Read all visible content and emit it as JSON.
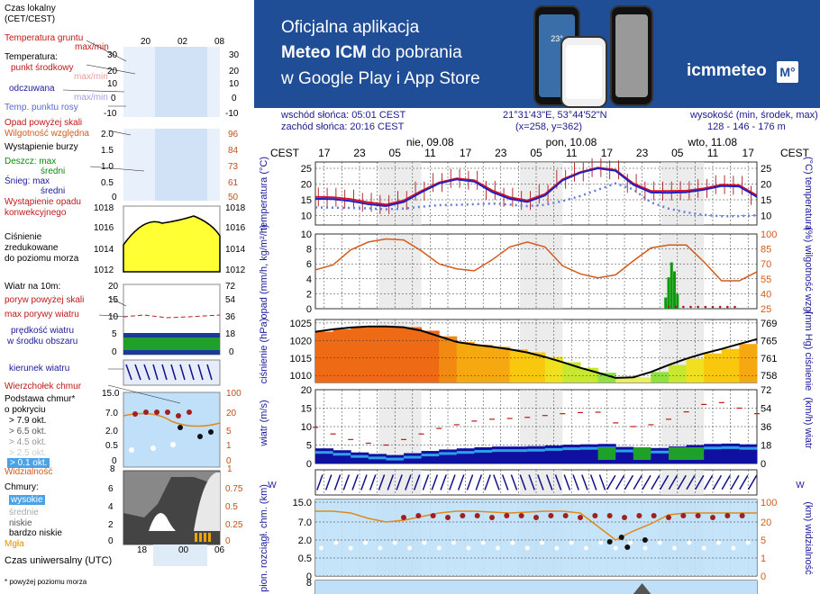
{
  "legend": {
    "time_title_1": "Czas lokalny",
    "time_title_2": "(CET/CEST)",
    "time_ticks_top": [
      "20",
      "02",
      "08"
    ],
    "soil_temp": "Temperatura gruntu",
    "soil_temp_sub": "max/min",
    "temperature": "Temperatura:",
    "mid_point": "punkt środkowy",
    "max_min_faint": "max/min",
    "feels_like": "odczuwana",
    "max_min_faint2": "max/min",
    "dew_point": "Temp. punktu rosy",
    "temp_ticks": [
      "30",
      "20",
      "10",
      "0",
      "-10"
    ],
    "rain_above": "Opad powyżej skali",
    "humidity": "Wilgotność względna",
    "storm": "Wystąpienie burzy",
    "rain_max": "Deszcz: max",
    "rain_mean": "średni",
    "snow_max": "Śnieg:  max",
    "snow_mean": "średni",
    "conv": "Wystąpienie opadu",
    "conv2": "konwekcyjnego",
    "precip_ticks_left": [
      "2.0",
      "1.5",
      "1.0",
      "0.5",
      "0"
    ],
    "precip_ticks_right": [
      "96",
      "84",
      "73",
      "61",
      "50"
    ],
    "pressure_ticks": [
      "1018",
      "1016",
      "1014",
      "1012"
    ],
    "pressure_1": "Ciśnienie",
    "pressure_2": "zredukowane",
    "pressure_3": "do poziomu morza",
    "wind_title": "Wiatr na 10m:",
    "gusts_above": "poryw powyżej skali",
    "gusts_max": "max porywy wiatru",
    "wind_speed": "prędkość wiatru",
    "wind_speed2": "w środku obszaru",
    "wind_ticks_left": [
      "20",
      "15",
      "10",
      "5",
      "0"
    ],
    "wind_ticks_right": [
      "72",
      "54",
      "36",
      "18",
      "0"
    ],
    "wind_dir": "kierunek wiatru",
    "cloud_top": "Wierzchołek chmur",
    "cloud_base": "Podstawa chmur*",
    "cloud_cover": "o pokryciu",
    "okt_79": "> 7.9 okt.",
    "okt_65": "> 6.5 okt.",
    "okt_45": "> 4.5 okt.",
    "okt_25": "> 2.5 okt.",
    "okt_01": "> 0.1 okt.",
    "cloud_ticks_left": [
      "15.0",
      "7.0",
      "2.0",
      "0.5",
      "0"
    ],
    "cloud_ticks_right": [
      "100",
      "20",
      "5",
      "1",
      "0"
    ],
    "visibility": "Widzialność",
    "vis_ticks": [
      "8",
      "1"
    ],
    "clouds": "Chmury:",
    "high": "wysokie",
    "medium": "średnie",
    "low": "niskie",
    "very_low": "bardzo niskie",
    "fog": "Mgła",
    "clouds_ticks_left": [
      "6",
      "4",
      "2",
      "0"
    ],
    "clouds_ticks_right": [
      "0.75",
      "0.5",
      "0.25",
      "0"
    ],
    "utc_ticks": [
      "18",
      "00",
      "06"
    ],
    "utc": "Czas uniwersalny (UTC)",
    "footnote": "* powyżej poziomu morza"
  },
  "banner": {
    "line1": "Oficjalna aplikacja",
    "line2_bold": "Meteo ICM",
    "line2_rest": " do pobrania",
    "line3": "w Google Play i App Store",
    "logo": "icmmeteo",
    "logo_badge": "M°",
    "phone_temp": "23°"
  },
  "info": {
    "sunrise": "wschód słońca: 05:01 CEST",
    "sunset": "zachód słońca: 20:16 CEST",
    "coords": "21°31'43\"E, 53°44'52\"N",
    "grid": "(x=258,  y=362)",
    "elev_title": "wysokość (min, środek, max)",
    "elev_values": "128 - 146 - 176 m"
  },
  "chart_data": {
    "type": "line",
    "tz_label": "CEST",
    "hours": [
      "17",
      "23",
      "05",
      "11",
      "17",
      "23",
      "05",
      "11",
      "17",
      "23",
      "05",
      "11",
      "17"
    ],
    "days": [
      "nie, 09.08",
      "pon, 10.08",
      "wto, 11.08"
    ],
    "panels": [
      {
        "name": "temperature",
        "ylabel_left": "temperatura (°C)",
        "ylabel_right": "(°C) temperatura",
        "ylim": [
          7,
          27
        ],
        "ticks": [
          10,
          15,
          20,
          25
        ],
        "series": [
          {
            "name": "punkt środkowy",
            "color": "#d4112d",
            "x": [
              0,
              6,
              12,
              18,
              24,
              30,
              36,
              42,
              48,
              54,
              60,
              66,
              72,
              78,
              84,
              90,
              96,
              102,
              108,
              114,
              120,
              126,
              132,
              138,
              144,
              150
            ],
            "y": [
              15.9,
              15.8,
              15.2,
              14.2,
              13.5,
              14.8,
              17.8,
              20.5,
              21.8,
              21.2,
              18.0,
              15.8,
              14.8,
              16.8,
              21.5,
              23.8,
              25.2,
              24.5,
              20.2,
              17.8,
              17.8,
              17.9,
              18.6,
              19.8,
              19.6,
              16.4
            ]
          },
          {
            "name": "odczuwana",
            "color": "#2020c0",
            "x": [
              0,
              6,
              12,
              18,
              24,
              30,
              36,
              42,
              48,
              54,
              60,
              66,
              72,
              78,
              84,
              90,
              96,
              102,
              108,
              114,
              120,
              126,
              132,
              138,
              144,
              150
            ],
            "y": [
              15.3,
              15.2,
              14.6,
              13.6,
              13.0,
              14.3,
              17.4,
              20.2,
              21.5,
              20.8,
              17.5,
              15.3,
              14.3,
              16.4,
              21.2,
              23.6,
              25.0,
              24.2,
              19.8,
              17.3,
              17.2,
              17.4,
              18.2,
              19.4,
              19.2,
              15.9
            ]
          },
          {
            "name": "Temp. punktu rosy",
            "color": "#6a7ad8",
            "x": [
              0,
              6,
              12,
              18,
              24,
              30,
              36,
              42,
              48,
              54,
              60,
              66,
              72,
              78,
              84,
              90,
              96,
              102,
              108,
              114,
              120,
              126,
              132,
              138,
              144,
              150
            ],
            "y": [
              12.6,
              12.5,
              12.4,
              12.3,
              12.0,
              12.2,
              12.8,
              13.3,
              13.4,
              13.6,
              13.8,
              13.5,
              13.0,
              13.4,
              14.6,
              16.2,
              18.2,
              20.2,
              18.3,
              14.2,
              12.2,
              11.0,
              10.2,
              9.8,
              9.8,
              10.1
            ]
          }
        ]
      },
      {
        "name": "precip_humidity",
        "ylabel_left": "opad (mm/h, kg/m²/h)",
        "ylabel_right": "(%) wilgotność wzgl.",
        "ylim": [
          0,
          10
        ],
        "ticks_left": [
          0,
          2,
          4,
          6,
          8,
          10
        ],
        "ticks_right": [
          25,
          40,
          55,
          70,
          85,
          100
        ],
        "series": [
          {
            "name": "Wilgotność względna",
            "color": "#d45a1a",
            "x": [
              0,
              6,
              12,
              18,
              24,
              30,
              36,
              42,
              48,
              54,
              60,
              66,
              72,
              78,
              84,
              90,
              96,
              102,
              108,
              114,
              120,
              126,
              132,
              138,
              144,
              150
            ],
            "y": [
              64,
              69,
              84,
              92,
              95,
              94,
              83,
              70,
              65,
              63,
              74,
              87,
              92,
              87,
              68,
              60,
              56,
              59,
              73,
              86,
              89,
              89,
              72,
              53,
              53,
              62
            ]
          },
          {
            "name": "Deszcz: max",
            "color": "#0a7a0a",
            "x": [
              119,
              120,
              121,
              122,
              123
            ],
            "y": [
              1.5,
              4.2,
              6.2,
              5.0,
              2.0
            ]
          }
        ]
      },
      {
        "name": "pressure",
        "ylabel_left": "ciśnienie (hPa)",
        "ylabel_right": "(mm Hg) ciśnienie",
        "ylim": [
          1008,
          1026
        ],
        "ticks_left": [
          1010,
          1015,
          1020,
          1025
        ],
        "ticks_right": [
          758,
          761,
          765,
          769
        ],
        "series": [
          {
            "name": "Ciśnienie",
            "color": "#000000",
            "x": [
              0,
              6,
              12,
              18,
              24,
              30,
              36,
              42,
              48,
              54,
              60,
              66,
              72,
              78,
              84,
              90,
              96,
              102,
              108,
              114,
              120,
              126,
              132,
              138,
              144,
              150
            ],
            "y": [
              1022.5,
              1023.2,
              1023.7,
              1024.0,
              1024.0,
              1023.8,
              1022.8,
              1021.2,
              1019.6,
              1018.8,
              1018.2,
              1017.5,
              1016.6,
              1015.3,
              1013.8,
              1012.2,
              1010.8,
              1009.3,
              1009.5,
              1011.0,
              1013.0,
              1014.8,
              1016.3,
              1017.6,
              1019.0,
              1020.4
            ]
          }
        ]
      },
      {
        "name": "wind",
        "ylabel_left": "wiatr (m/s)",
        "ylabel_right": "(km/h) wiatr",
        "ylim": [
          0,
          20
        ],
        "ticks_left": [
          0,
          5,
          10,
          15,
          20
        ],
        "ticks_right": [
          0,
          18,
          36,
          54,
          72
        ],
        "series": [
          {
            "name": "max porywy wiatru",
            "color": "#c01818",
            "x": [
              0,
              6,
              12,
              18,
              24,
              30,
              36,
              42,
              48,
              54,
              60,
              66,
              72,
              78,
              84,
              90,
              96,
              102,
              108,
              114,
              120,
              126,
              132,
              138,
              144,
              150
            ],
            "y": [
              9.8,
              8.0,
              6.5,
              5.5,
              5.0,
              6.5,
              8.0,
              9.5,
              10.5,
              11.5,
              12.0,
              12.2,
              12.5,
              13.0,
              13.5,
              13.8,
              13.9,
              11.0,
              10.0,
              10.5,
              12.0,
              14.0,
              16.0,
              16.5,
              15.0,
              13.5
            ]
          },
          {
            "name": "prędkość wiatru",
            "color": "#0044cc",
            "x": [
              0,
              6,
              12,
              18,
              24,
              30,
              36,
              42,
              48,
              54,
              60,
              66,
              72,
              78,
              84,
              90,
              96,
              102,
              108,
              114,
              120,
              126,
              132,
              138,
              144,
              150
            ],
            "y": [
              4.1,
              3.6,
              3.0,
              2.6,
              2.3,
              2.8,
              3.4,
              3.8,
              4.1,
              4.4,
              4.6,
              4.6,
              4.7,
              4.9,
              5.1,
              5.2,
              5.3,
              4.5,
              4.0,
              4.2,
              4.6,
              5.0,
              5.3,
              5.4,
              5.2,
              4.8
            ]
          }
        ]
      },
      {
        "name": "cloud_base_visibility",
        "ylabel_left": "pion. rozciągł. chm. (km)",
        "ylabel_right": "(km) widzialność",
        "ticks_left": [
          "0",
          "0.5",
          "2.0",
          "7.0",
          "15.0"
        ],
        "ticks_right": [
          "0",
          "1",
          "5",
          "20",
          "100"
        ]
      }
    ]
  },
  "colors": {
    "banner": "#1f4d96",
    "temp_mid": "#d4112d",
    "feels": "#2020c0",
    "dew": "#6a7ad8",
    "humidity": "#d45a1a",
    "rain": "#0a9a0a",
    "pressure_fill": "#ffff00",
    "wind_fill": "#1010a0",
    "sky": "#bfe0f8",
    "night": "#d8d8d8"
  }
}
